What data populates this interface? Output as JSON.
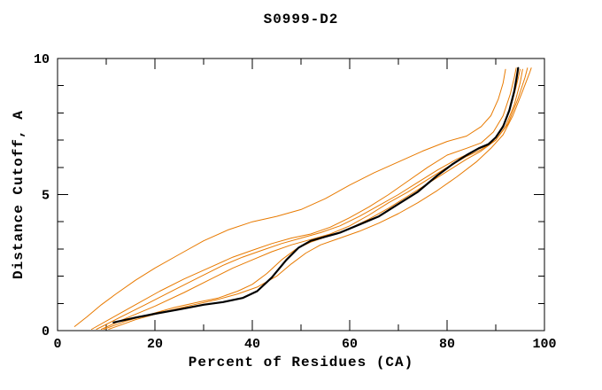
{
  "chart_data": {
    "type": "line",
    "title": "S0999-D2",
    "xlabel": "Percent of Residues (CA)",
    "ylabel": "Distance Cutoff, A",
    "xlim": [
      0,
      100
    ],
    "ylim": [
      0,
      10
    ],
    "grid": false,
    "legend": "none",
    "axes_style": "full-box-inward-ticks",
    "x_major_ticks": [
      {
        "value": 0,
        "label": "0"
      },
      {
        "value": 20,
        "label": "20"
      },
      {
        "value": 40,
        "label": "40"
      },
      {
        "value": 60,
        "label": "60"
      },
      {
        "value": 80,
        "label": "80"
      },
      {
        "value": 100,
        "label": "100"
      }
    ],
    "x_minor_ticks": [
      10,
      30,
      50,
      70,
      90
    ],
    "y_major_ticks": [
      {
        "value": 0,
        "label": "0"
      },
      {
        "value": 5,
        "label": "5"
      },
      {
        "value": 10,
        "label": "10"
      }
    ],
    "y_minor_ticks": [
      1,
      2,
      3,
      4,
      6,
      7,
      8,
      9
    ],
    "colors": {
      "highlight_curve": "#000000",
      "model_curves": "#e87a00",
      "axis": "#000000",
      "background": "#ffffff"
    },
    "series": [
      {
        "name": "orange-curve-1",
        "color": "#e87a00",
        "width": 1,
        "points": [
          [
            3.5,
            0.15
          ],
          [
            6,
            0.5
          ],
          [
            9,
            0.95
          ],
          [
            12,
            1.35
          ],
          [
            16,
            1.85
          ],
          [
            20,
            2.3
          ],
          [
            25,
            2.8
          ],
          [
            30,
            3.3
          ],
          [
            35,
            3.7
          ],
          [
            40,
            4.0
          ],
          [
            45,
            4.2
          ],
          [
            50,
            4.45
          ],
          [
            55,
            4.85
          ],
          [
            60,
            5.35
          ],
          [
            65,
            5.8
          ],
          [
            70,
            6.2
          ],
          [
            75,
            6.6
          ],
          [
            80,
            6.95
          ],
          [
            84,
            7.15
          ],
          [
            87,
            7.5
          ],
          [
            89,
            7.9
          ],
          [
            90.5,
            8.5
          ],
          [
            91.5,
            9.1
          ],
          [
            92,
            9.6
          ]
        ]
      },
      {
        "name": "orange-curve-2",
        "color": "#e87a00",
        "width": 1,
        "points": [
          [
            7,
            0.05
          ],
          [
            11,
            0.45
          ],
          [
            16,
            0.95
          ],
          [
            21,
            1.45
          ],
          [
            26,
            1.9
          ],
          [
            31,
            2.3
          ],
          [
            36,
            2.7
          ],
          [
            40,
            2.95
          ],
          [
            44,
            3.2
          ],
          [
            48,
            3.4
          ],
          [
            52,
            3.55
          ],
          [
            56,
            3.8
          ],
          [
            60,
            4.15
          ],
          [
            64,
            4.55
          ],
          [
            68,
            5.0
          ],
          [
            72,
            5.5
          ],
          [
            76,
            6.0
          ],
          [
            80,
            6.45
          ],
          [
            84,
            6.7
          ],
          [
            87,
            6.9
          ],
          [
            89.5,
            7.3
          ],
          [
            91.5,
            7.9
          ],
          [
            93,
            8.7
          ],
          [
            93.8,
            9.3
          ],
          [
            94.2,
            9.65
          ]
        ]
      },
      {
        "name": "orange-curve-3",
        "color": "#e87a00",
        "width": 1,
        "points": [
          [
            8,
            0.05
          ],
          [
            13,
            0.5
          ],
          [
            18,
            0.95
          ],
          [
            24,
            1.5
          ],
          [
            29,
            1.95
          ],
          [
            34,
            2.4
          ],
          [
            38,
            2.7
          ],
          [
            42,
            2.95
          ],
          [
            46,
            3.2
          ],
          [
            50,
            3.4
          ],
          [
            54,
            3.6
          ],
          [
            58,
            3.85
          ],
          [
            62,
            4.2
          ],
          [
            66,
            4.6
          ],
          [
            70,
            5.0
          ],
          [
            74,
            5.45
          ],
          [
            78,
            5.9
          ],
          [
            82,
            6.3
          ],
          [
            85,
            6.55
          ],
          [
            88,
            6.8
          ],
          [
            90,
            7.1
          ],
          [
            92,
            7.7
          ],
          [
            93.5,
            8.5
          ],
          [
            94.5,
            9.2
          ],
          [
            95,
            9.6
          ]
        ]
      },
      {
        "name": "orange-curve-4",
        "color": "#e87a00",
        "width": 1,
        "points": [
          [
            9,
            0.05
          ],
          [
            14,
            0.45
          ],
          [
            20,
            0.9
          ],
          [
            26,
            1.4
          ],
          [
            31,
            1.85
          ],
          [
            36,
            2.3
          ],
          [
            40,
            2.6
          ],
          [
            44,
            2.9
          ],
          [
            48,
            3.15
          ],
          [
            52,
            3.35
          ],
          [
            56,
            3.55
          ],
          [
            60,
            3.85
          ],
          [
            64,
            4.25
          ],
          [
            68,
            4.7
          ],
          [
            72,
            5.1
          ],
          [
            76,
            5.55
          ],
          [
            80,
            6.0
          ],
          [
            84,
            6.4
          ],
          [
            87,
            6.65
          ],
          [
            90,
            7.0
          ],
          [
            92,
            7.5
          ],
          [
            93.8,
            8.3
          ],
          [
            95,
            9.1
          ],
          [
            95.5,
            9.6
          ]
        ]
      },
      {
        "name": "orange-curve-5",
        "color": "#e87a00",
        "width": 1,
        "points": [
          [
            9.5,
            0.05
          ],
          [
            14,
            0.35
          ],
          [
            19,
            0.6
          ],
          [
            24,
            0.85
          ],
          [
            29,
            1.05
          ],
          [
            33,
            1.2
          ],
          [
            37,
            1.45
          ],
          [
            40,
            1.7
          ],
          [
            43,
            2.1
          ],
          [
            46,
            2.6
          ],
          [
            49,
            3.0
          ],
          [
            52,
            3.25
          ],
          [
            56,
            3.5
          ],
          [
            60,
            3.75
          ],
          [
            64,
            4.1
          ],
          [
            68,
            4.5
          ],
          [
            72,
            4.95
          ],
          [
            76,
            5.4
          ],
          [
            80,
            5.85
          ],
          [
            84,
            6.3
          ],
          [
            87,
            6.6
          ],
          [
            90,
            7.0
          ],
          [
            92.5,
            7.6
          ],
          [
            94.5,
            8.5
          ],
          [
            96,
            9.3
          ],
          [
            96.5,
            9.65
          ]
        ]
      },
      {
        "name": "orange-curve-6",
        "color": "#e87a00",
        "width": 1,
        "points": [
          [
            10.5,
            0.05
          ],
          [
            16,
            0.4
          ],
          [
            22,
            0.7
          ],
          [
            28,
            0.95
          ],
          [
            33,
            1.15
          ],
          [
            37,
            1.35
          ],
          [
            41,
            1.6
          ],
          [
            45,
            2.0
          ],
          [
            48,
            2.45
          ],
          [
            51,
            2.85
          ],
          [
            54,
            3.15
          ],
          [
            58,
            3.4
          ],
          [
            62,
            3.65
          ],
          [
            66,
            3.95
          ],
          [
            70,
            4.3
          ],
          [
            74,
            4.7
          ],
          [
            78,
            5.15
          ],
          [
            82,
            5.65
          ],
          [
            86,
            6.2
          ],
          [
            89,
            6.7
          ],
          [
            91.5,
            7.2
          ],
          [
            93.5,
            7.9
          ],
          [
            95.5,
            8.8
          ],
          [
            97,
            9.5
          ],
          [
            97.3,
            9.65
          ]
        ]
      },
      {
        "name": "black-curve",
        "color": "#000000",
        "width": 2.2,
        "points": [
          [
            11.5,
            0.3
          ],
          [
            16,
            0.48
          ],
          [
            20,
            0.62
          ],
          [
            25,
            0.78
          ],
          [
            30,
            0.95
          ],
          [
            34,
            1.05
          ],
          [
            38,
            1.2
          ],
          [
            41,
            1.45
          ],
          [
            44,
            1.95
          ],
          [
            47,
            2.6
          ],
          [
            49.5,
            3.05
          ],
          [
            52,
            3.3
          ],
          [
            55,
            3.45
          ],
          [
            58,
            3.6
          ],
          [
            62,
            3.9
          ],
          [
            66,
            4.2
          ],
          [
            70,
            4.65
          ],
          [
            74,
            5.1
          ],
          [
            78,
            5.7
          ],
          [
            81,
            6.1
          ],
          [
            84,
            6.45
          ],
          [
            86.5,
            6.7
          ],
          [
            88.5,
            6.85
          ],
          [
            90,
            7.1
          ],
          [
            91.5,
            7.5
          ],
          [
            92.8,
            8.1
          ],
          [
            93.8,
            8.8
          ],
          [
            94.3,
            9.3
          ],
          [
            94.6,
            9.65
          ]
        ]
      }
    ]
  }
}
